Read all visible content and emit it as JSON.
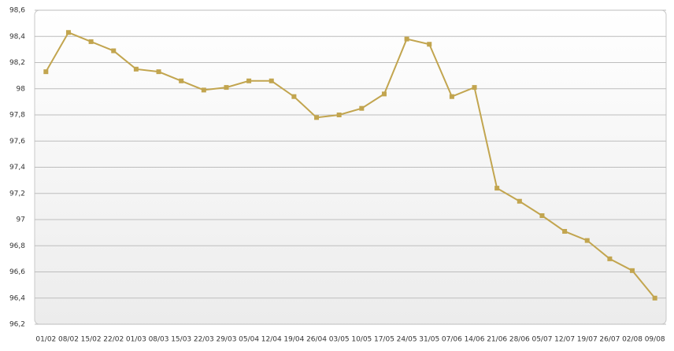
{
  "chart_data": {
    "type": "line",
    "categories": [
      "01/02",
      "08/02",
      "15/02",
      "22/02",
      "01/03",
      "08/03",
      "15/03",
      "22/03",
      "29/03",
      "05/04",
      "12/04",
      "19/04",
      "26/04",
      "03/05",
      "10/05",
      "17/05",
      "24/05",
      "31/05",
      "07/06",
      "14/06",
      "21/06",
      "28/06",
      "05/07",
      "12/07",
      "19/07",
      "26/07",
      "02/08",
      "09/08"
    ],
    "series": [
      {
        "color": "#c2a54f",
        "values": [
          98.13,
          98.43,
          98.36,
          98.29,
          98.15,
          98.13,
          98.06,
          97.99,
          98.01,
          98.06,
          98.06,
          97.94,
          97.78,
          97.8,
          97.85,
          97.96,
          98.38,
          98.34,
          97.94,
          98.01,
          97.24,
          97.14,
          97.03,
          96.91,
          96.84,
          96.7,
          96.61,
          96.4
        ]
      }
    ],
    "ylim": [
      96.2,
      98.6
    ],
    "yticks": [
      {
        "value": 96.2,
        "label": "96,2"
      },
      {
        "value": 96.4,
        "label": "96,4"
      },
      {
        "value": 96.6,
        "label": "96,6"
      },
      {
        "value": 96.8,
        "label": "96,8"
      },
      97,
      {
        "value": 97.2,
        "label": "97,2"
      },
      {
        "value": 97.4,
        "label": "97,4"
      },
      {
        "value": 97.6,
        "label": "97,6"
      },
      {
        "value": 97.8,
        "label": "97,8"
      },
      98,
      {
        "value": 98.2,
        "label": "98,2"
      },
      {
        "value": 98.4,
        "label": "98,4"
      },
      {
        "value": 98.6,
        "label": "98,6"
      }
    ],
    "grid": true
  }
}
